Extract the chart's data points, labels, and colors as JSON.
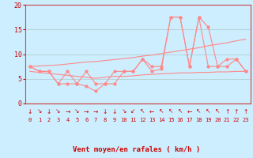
{
  "xlabel": "Vent moyen/en rafales ( km/h )",
  "background_color": "#cceeff",
  "line_color": "#ff8888",
  "x_ticks": [
    0,
    1,
    2,
    3,
    4,
    5,
    6,
    7,
    8,
    9,
    10,
    11,
    12,
    13,
    14,
    15,
    16,
    17,
    18,
    19,
    20,
    21,
    22,
    23
  ],
  "ylim": [
    0,
    20
  ],
  "xlim": [
    -0.5,
    23.5
  ],
  "yticks": [
    0,
    5,
    10,
    15,
    20
  ],
  "wind_avg": [
    7.5,
    6.5,
    6.5,
    4.0,
    4.0,
    4.0,
    3.5,
    2.5,
    4.0,
    4.0,
    6.5,
    6.5,
    9.0,
    6.5,
    7.0,
    17.5,
    17.5,
    7.5,
    17.5,
    15.5,
    7.5,
    7.5,
    9.0,
    6.5
  ],
  "wind_gust": [
    7.5,
    6.5,
    6.5,
    4.0,
    6.5,
    4.0,
    6.5,
    4.0,
    4.0,
    6.5,
    6.5,
    6.5,
    9.0,
    7.5,
    7.5,
    17.5,
    17.5,
    7.5,
    17.5,
    7.5,
    7.5,
    9.0,
    9.0,
    6.5
  ],
  "trend_low": [
    6.5,
    6.3,
    6.1,
    5.9,
    5.7,
    5.5,
    5.3,
    5.1,
    5.3,
    5.5,
    5.5,
    5.6,
    5.8,
    5.9,
    6.0,
    6.1,
    6.2,
    6.2,
    6.3,
    6.3,
    6.4,
    6.4,
    6.5,
    6.5
  ],
  "trend_high": [
    7.5,
    7.6,
    7.7,
    7.8,
    8.0,
    8.2,
    8.4,
    8.5,
    8.7,
    8.9,
    9.1,
    9.3,
    9.6,
    9.8,
    10.1,
    10.4,
    10.7,
    11.0,
    11.3,
    11.7,
    12.0,
    12.3,
    12.7,
    13.0
  ],
  "wind_direction_symbols": [
    "↓",
    "↘",
    "↓",
    "↘",
    "→",
    "↘",
    "→",
    "→",
    "↓",
    "↓",
    "↘",
    "↙",
    "↖",
    "←",
    "↖",
    "↖",
    "↖",
    "←",
    "↖",
    "↖",
    "↖",
    "↑",
    "↑",
    "↑"
  ]
}
